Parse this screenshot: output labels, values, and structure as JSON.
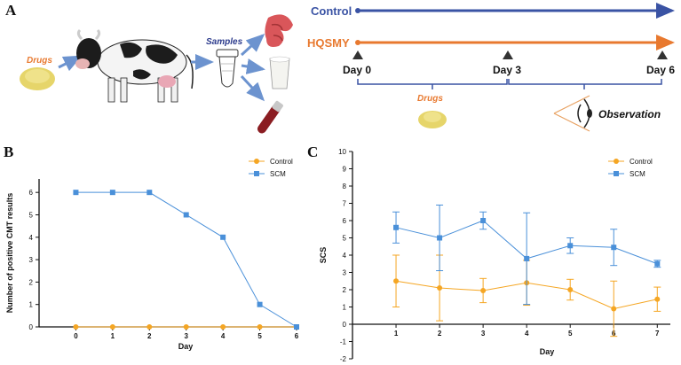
{
  "panels": {
    "a": "A",
    "b": "B",
    "c": "C"
  },
  "schematic": {
    "drugs_label": "Drugs",
    "samples_label": "Samples",
    "control_label": "Control",
    "hqsmy_label": "HQSMY",
    "days": [
      "Day 0",
      "Day 3",
      "Day 6"
    ],
    "drugs_label_timeline": "Drugs",
    "observation_label": "Observation",
    "colors": {
      "control": "#3a53a4",
      "hqsmy": "#e8792f",
      "drugs_text": "#e8792f",
      "samples_text": "#2b3a8c"
    }
  },
  "chart_data": [
    {
      "id": "B",
      "type": "line",
      "title": "",
      "xlabel": "Day",
      "ylabel": "Number of positive CMT results",
      "x": [
        0,
        1,
        2,
        3,
        4,
        5,
        6
      ],
      "xlim": [
        -1,
        6
      ],
      "ylim": [
        0,
        6.6
      ],
      "yticks": [
        0,
        1,
        2,
        3,
        4,
        5,
        6
      ],
      "legend_position": "top-right",
      "series": [
        {
          "name": "Control",
          "marker": "circle",
          "color": "#f5a623",
          "values": [
            0,
            0,
            0,
            0,
            0,
            0,
            0
          ]
        },
        {
          "name": "SCM",
          "marker": "square",
          "color": "#4a90d9",
          "values": [
            6,
            6,
            6,
            5,
            4,
            1,
            0
          ]
        }
      ]
    },
    {
      "id": "C",
      "type": "line",
      "title": "",
      "xlabel": "Day",
      "ylabel": "SCS",
      "x": [
        1,
        2,
        3,
        4,
        5,
        6,
        7
      ],
      "xlim": [
        0,
        7.3
      ],
      "ylim": [
        -2,
        10
      ],
      "yticks": [
        -2,
        -1,
        0,
        1,
        2,
        3,
        4,
        5,
        6,
        7,
        8,
        9,
        10
      ],
      "legend_position": "top-right",
      "series": [
        {
          "name": "Control",
          "marker": "circle",
          "color": "#f5a623",
          "values": [
            2.5,
            2.1,
            1.95,
            2.4,
            2.0,
            0.9,
            1.45
          ],
          "err": [
            1.5,
            1.9,
            0.7,
            1.3,
            0.6,
            1.6,
            0.7
          ]
        },
        {
          "name": "SCM",
          "marker": "square",
          "color": "#4a90d9",
          "values": [
            5.6,
            5.0,
            6.0,
            3.8,
            4.55,
            4.45,
            3.5
          ],
          "err": [
            0.9,
            1.9,
            0.5,
            2.65,
            0.45,
            1.05,
            0.2
          ]
        }
      ]
    }
  ]
}
